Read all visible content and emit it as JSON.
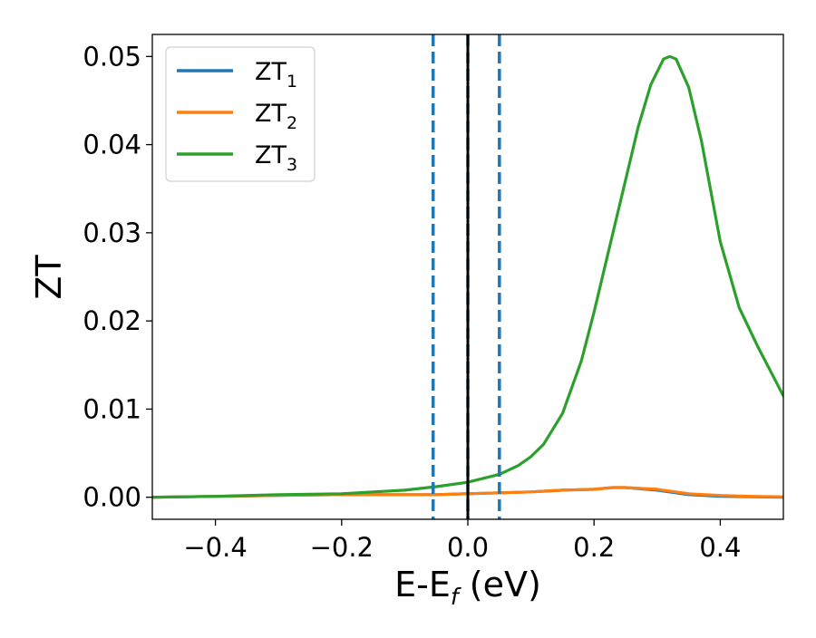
{
  "chart_data": {
    "type": "line",
    "xlabel": "E-E",
    "xlabel_sub": "f",
    "xlabel_unit": " (eV)",
    "ylabel": "ZT",
    "xlim": [
      -0.5,
      0.5
    ],
    "ylim": [
      -0.0025,
      0.0525
    ],
    "xticks": [
      -0.4,
      -0.2,
      0.0,
      0.2,
      0.4
    ],
    "xtick_labels": [
      "−0.4",
      "−0.2",
      "0.0",
      "0.2",
      "0.4"
    ],
    "yticks": [
      0.0,
      0.01,
      0.02,
      0.03,
      0.04,
      0.05
    ],
    "ytick_labels": [
      "0.00",
      "0.01",
      "0.02",
      "0.03",
      "0.04",
      "0.05"
    ],
    "grid": false,
    "legend_position": "top-left",
    "vlines": [
      {
        "x": -0.055,
        "style": "dashed",
        "color": "#1f77b4"
      },
      {
        "x": 0.0,
        "style": "dashed",
        "color": "#1f77b4"
      },
      {
        "x": 0.05,
        "style": "dashed",
        "color": "#1f77b4"
      },
      {
        "x": 0.0,
        "style": "solid",
        "color": "#000000"
      }
    ],
    "series": [
      {
        "name": "ZT",
        "sub": "1",
        "color": "#1f77b4",
        "x": [
          -0.5,
          -0.4,
          -0.3,
          -0.2,
          -0.1,
          -0.05,
          0.0,
          0.05,
          0.1,
          0.15,
          0.2,
          0.23,
          0.25,
          0.3,
          0.35,
          0.4,
          0.45,
          0.5
        ],
        "y": [
          0.0,
          0.0001,
          0.0002,
          0.0003,
          0.0003,
          0.0003,
          0.0004,
          0.0005,
          0.0006,
          0.0008,
          0.0009,
          0.0011,
          0.0011,
          0.0008,
          0.0003,
          0.0001,
          5e-05,
          0.0
        ]
      },
      {
        "name": "ZT",
        "sub": "2",
        "color": "#ff7f0e",
        "x": [
          -0.5,
          -0.4,
          -0.3,
          -0.2,
          -0.1,
          -0.05,
          0.0,
          0.05,
          0.1,
          0.15,
          0.2,
          0.23,
          0.25,
          0.3,
          0.35,
          0.4,
          0.45,
          0.5
        ],
        "y": [
          0.0,
          0.0001,
          0.0002,
          0.0003,
          0.0003,
          0.0003,
          0.0004,
          0.0005,
          0.0006,
          0.0008,
          0.0009,
          0.0011,
          0.0011,
          0.0009,
          0.0004,
          0.0002,
          0.0001,
          5e-05
        ]
      },
      {
        "name": "ZT",
        "sub": "3",
        "color": "#2ca02c",
        "x": [
          -0.5,
          -0.4,
          -0.3,
          -0.2,
          -0.15,
          -0.1,
          -0.05,
          0.0,
          0.05,
          0.08,
          0.1,
          0.12,
          0.15,
          0.18,
          0.2,
          0.22,
          0.25,
          0.27,
          0.29,
          0.31,
          0.32,
          0.33,
          0.35,
          0.37,
          0.4,
          0.43,
          0.46,
          0.5
        ],
        "y": [
          0.0,
          0.0001,
          0.0003,
          0.0004,
          0.0006,
          0.0008,
          0.0012,
          0.0017,
          0.0026,
          0.0036,
          0.0046,
          0.006,
          0.0095,
          0.0155,
          0.021,
          0.027,
          0.036,
          0.042,
          0.0468,
          0.0497,
          0.05,
          0.0497,
          0.0465,
          0.0405,
          0.029,
          0.0215,
          0.017,
          0.0115
        ]
      }
    ]
  }
}
